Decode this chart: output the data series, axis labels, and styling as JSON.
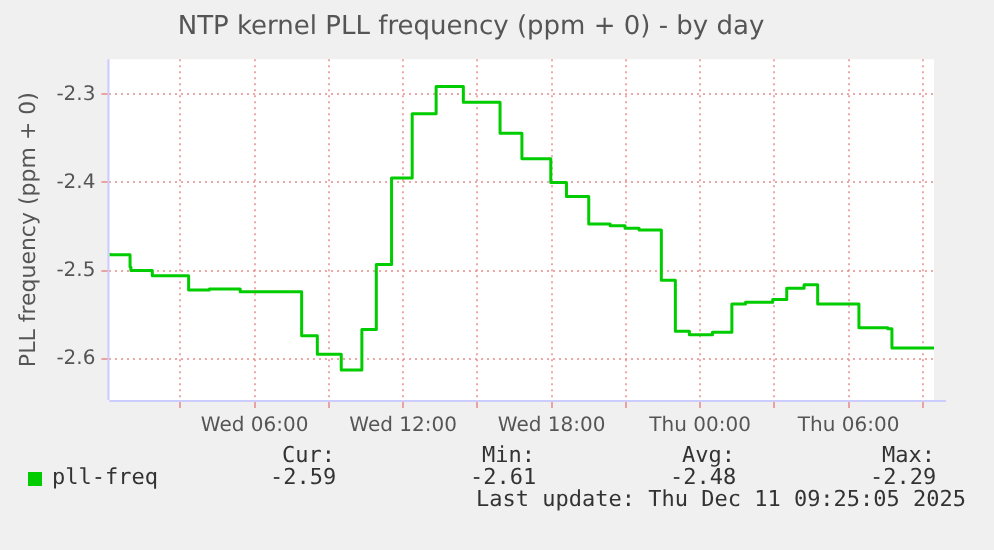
{
  "chart_data": {
    "type": "step",
    "title": "NTP kernel PLL frequency (ppm + 0) - by day",
    "ylabel": "PLL frequency (ppm + 0)",
    "x": [
      "2025-12-10T00:08",
      "2025-12-10T00:58",
      "2025-12-10T01:00",
      "2025-12-10T01:52",
      "2025-12-10T03:20",
      "2025-12-10T04:10",
      "2025-12-10T05:25",
      "2025-12-10T07:54",
      "2025-12-10T08:32",
      "2025-12-10T09:30",
      "2025-12-10T10:20",
      "2025-12-10T10:55",
      "2025-12-10T11:32",
      "2025-12-10T12:22",
      "2025-12-10T13:20",
      "2025-12-10T14:26",
      "2025-12-10T15:55",
      "2025-12-10T16:48",
      "2025-12-10T17:58",
      "2025-12-10T18:36",
      "2025-12-10T19:30",
      "2025-12-10T20:22",
      "2025-12-10T20:58",
      "2025-12-10T21:32",
      "2025-12-10T22:26",
      "2025-12-10T23:00",
      "2025-12-10T23:34",
      "2025-12-11T00:30",
      "2025-12-11T01:17",
      "2025-12-11T01:50",
      "2025-12-11T02:56",
      "2025-12-11T03:30",
      "2025-12-11T04:12",
      "2025-12-11T04:45",
      "2025-12-11T06:25",
      "2025-12-11T07:35",
      "2025-12-11T07:45",
      "2025-12-11T09:06",
      "2025-12-11T09:27"
    ],
    "series": [
      {
        "name": "pll-freq",
        "color": "#00cc00",
        "values": [
          -2.48,
          -2.482,
          -2.496,
          -2.5,
          -2.506,
          -2.522,
          -2.521,
          -2.524,
          -2.574,
          -2.595,
          -2.613,
          -2.567,
          -2.493,
          -2.395,
          -2.322,
          -2.291,
          -2.309,
          -2.344,
          -2.373,
          -2.4,
          -2.416,
          -2.447,
          -2.449,
          -2.452,
          -2.454,
          -2.511,
          -2.569,
          -2.573,
          -2.57,
          -2.538,
          -2.536,
          -2.533,
          -2.52,
          -2.516,
          -2.538,
          -2.565,
          -2.566,
          -2.588,
          -2.588
        ]
      }
    ],
    "xlim": [
      "2025-12-10T00:08",
      "2025-12-11T09:27"
    ],
    "xticks": [
      {
        "value": "2025-12-10T03:00",
        "label": null
      },
      {
        "value": "2025-12-10T06:00",
        "label": "Wed 06:00"
      },
      {
        "value": "2025-12-10T09:00",
        "label": null
      },
      {
        "value": "2025-12-10T12:00",
        "label": "Wed 12:00"
      },
      {
        "value": "2025-12-10T15:00",
        "label": null
      },
      {
        "value": "2025-12-10T18:00",
        "label": "Wed 18:00"
      },
      {
        "value": "2025-12-10T21:00",
        "label": null
      },
      {
        "value": "2025-12-11T00:00",
        "label": "Thu 00:00"
      },
      {
        "value": "2025-12-11T03:00",
        "label": null
      },
      {
        "value": "2025-12-11T06:00",
        "label": "Thu 06:00"
      },
      {
        "value": "2025-12-11T09:00",
        "label": null
      }
    ],
    "ylim": [
      -2.647,
      -2.26
    ],
    "yticks": [
      -2.6,
      -2.5,
      -2.4,
      -2.3
    ],
    "grid": true,
    "legend": "bottom",
    "annotations": [
      "Cur:",
      "Min:",
      "Avg:",
      "Max:",
      "-2.59",
      "-2.61",
      "-2.48",
      "-2.29",
      "Last update: Thu Dec 11 09:25:05 2025"
    ]
  }
}
